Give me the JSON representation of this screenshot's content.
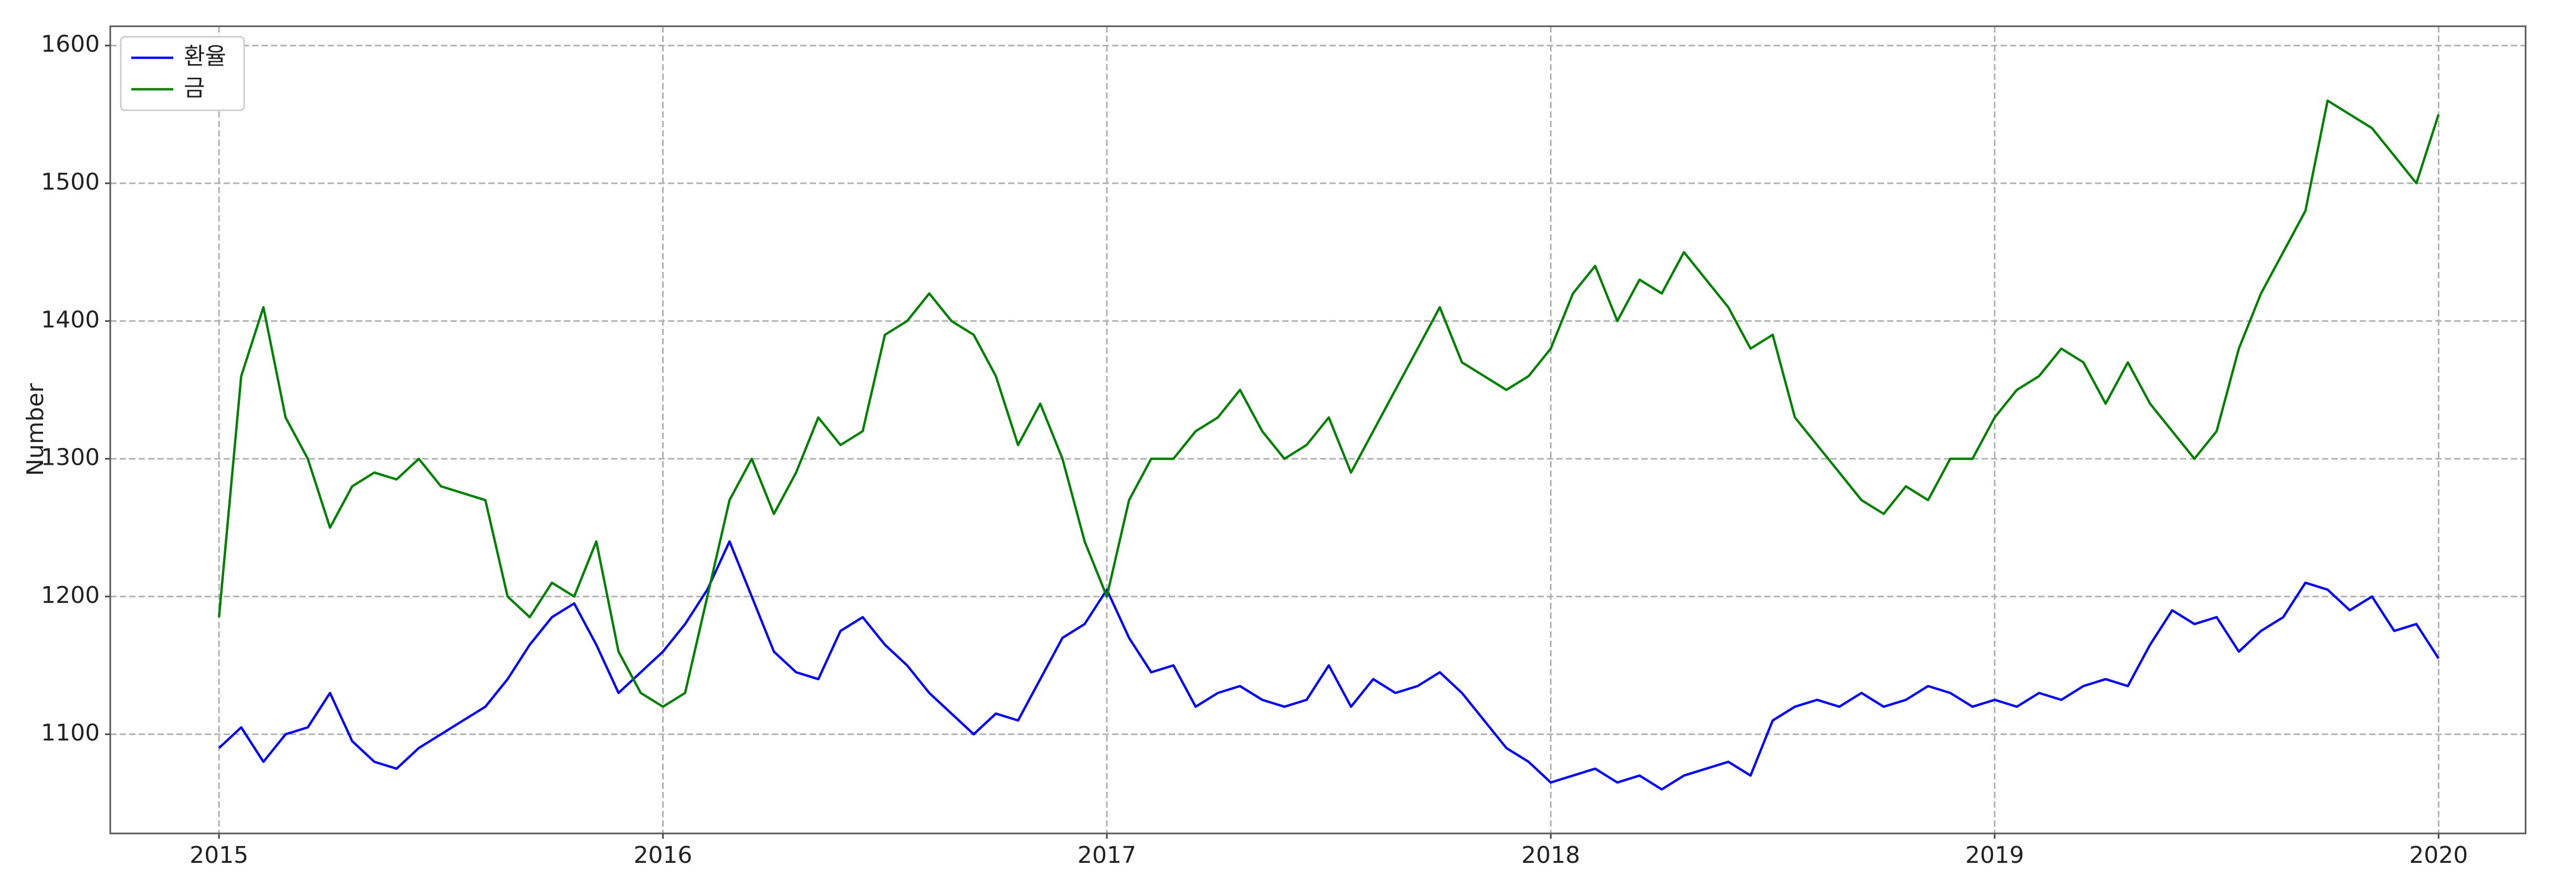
{
  "chart_data": {
    "type": "line",
    "ylabel": "Number",
    "x": [
      2015.0,
      2015.05,
      2015.1,
      2015.15,
      2015.2,
      2015.25,
      2015.3,
      2015.35,
      2015.4,
      2015.45,
      2015.5,
      2015.55,
      2015.6,
      2015.65,
      2015.7,
      2015.75,
      2015.8,
      2015.85,
      2015.9,
      2015.95,
      2016.0,
      2016.05,
      2016.1,
      2016.15,
      2016.2,
      2016.25,
      2016.3,
      2016.35,
      2016.4,
      2016.45,
      2016.5,
      2016.55,
      2016.6,
      2016.65,
      2016.7,
      2016.75,
      2016.8,
      2016.85,
      2016.9,
      2016.95,
      2017.0,
      2017.05,
      2017.1,
      2017.15,
      2017.2,
      2017.25,
      2017.3,
      2017.35,
      2017.4,
      2017.45,
      2017.5,
      2017.55,
      2017.6,
      2017.65,
      2017.7,
      2017.75,
      2017.8,
      2017.85,
      2017.9,
      2017.95,
      2018.0,
      2018.05,
      2018.1,
      2018.15,
      2018.2,
      2018.25,
      2018.3,
      2018.35,
      2018.4,
      2018.45,
      2018.5,
      2018.55,
      2018.6,
      2018.65,
      2018.7,
      2018.75,
      2018.8,
      2018.85,
      2018.9,
      2018.95,
      2019.0,
      2019.05,
      2019.1,
      2019.15,
      2019.2,
      2019.25,
      2019.3,
      2019.35,
      2019.4,
      2019.45,
      2019.5,
      2019.55,
      2019.6,
      2019.65,
      2019.7,
      2019.75,
      2019.8,
      2019.85,
      2019.9,
      2019.95,
      2020.0
    ],
    "series": [
      {
        "name": "환율",
        "color": "#0000ff",
        "values": [
          1090,
          1105,
          1080,
          1100,
          1105,
          1130,
          1095,
          1080,
          1075,
          1090,
          1100,
          1110,
          1120,
          1140,
          1165,
          1185,
          1195,
          1165,
          1130,
          1145,
          1160,
          1180,
          1205,
          1240,
          1200,
          1160,
          1145,
          1140,
          1175,
          1185,
          1165,
          1150,
          1130,
          1115,
          1100,
          1115,
          1110,
          1140,
          1170,
          1180,
          1205,
          1170,
          1145,
          1150,
          1120,
          1130,
          1135,
          1125,
          1120,
          1125,
          1150,
          1120,
          1140,
          1130,
          1135,
          1145,
          1130,
          1110,
          1090,
          1080,
          1065,
          1070,
          1075,
          1065,
          1070,
          1060,
          1070,
          1075,
          1080,
          1070,
          1110,
          1120,
          1125,
          1120,
          1130,
          1120,
          1125,
          1135,
          1130,
          1120,
          1125,
          1120,
          1130,
          1125,
          1135,
          1140,
          1135,
          1165,
          1190,
          1180,
          1185,
          1160,
          1175,
          1185,
          1210,
          1205,
          1190,
          1200,
          1175,
          1180,
          1155
        ]
      },
      {
        "name": "금",
        "color": "#008000",
        "values": [
          1185,
          1360,
          1410,
          1330,
          1300,
          1250,
          1280,
          1290,
          1285,
          1300,
          1280,
          1275,
          1270,
          1200,
          1185,
          1210,
          1200,
          1240,
          1160,
          1130,
          1120,
          1130,
          1200,
          1270,
          1300,
          1260,
          1290,
          1330,
          1310,
          1320,
          1390,
          1400,
          1420,
          1400,
          1390,
          1360,
          1310,
          1340,
          1300,
          1240,
          1200,
          1270,
          1300,
          1300,
          1320,
          1330,
          1350,
          1320,
          1300,
          1310,
          1330,
          1290,
          1320,
          1350,
          1380,
          1410,
          1370,
          1360,
          1350,
          1360,
          1380,
          1420,
          1440,
          1400,
          1430,
          1420,
          1450,
          1430,
          1410,
          1380,
          1390,
          1330,
          1310,
          1290,
          1270,
          1260,
          1280,
          1270,
          1300,
          1300,
          1330,
          1350,
          1360,
          1380,
          1370,
          1340,
          1370,
          1340,
          1320,
          1300,
          1320,
          1380,
          1420,
          1450,
          1480,
          1560,
          1550,
          1540,
          1520,
          1500,
          1550
        ]
      }
    ],
    "xlim": [
      2014.755,
      2020.196
    ],
    "xticks": [
      2015,
      2016,
      2017,
      2018,
      2019,
      2020
    ],
    "ylim": [
      1028,
      1614
    ],
    "yticks": [
      1100,
      1200,
      1300,
      1400,
      1500,
      1600
    ],
    "grid": true,
    "legend": "upper left"
  }
}
